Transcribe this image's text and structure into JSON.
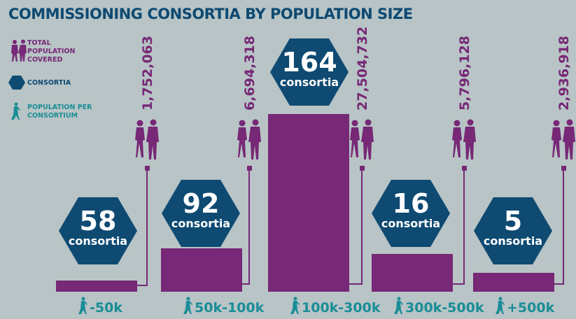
{
  "chart_data": {
    "type": "bar",
    "title": "COMMISSIONING CONSORTIA BY POPULATION SIZE",
    "legend": [
      {
        "label": "TOTAL POPULATION COVERED",
        "icon": "people-icon"
      },
      {
        "label": "CONSORTIA",
        "icon": "hexagon-icon"
      },
      {
        "label": "POPULATION PER CONSORTIUM",
        "icon": "walking-person-icon"
      }
    ],
    "categories": [
      "-50k",
      "50k-100k",
      "100k-300k",
      "300k-500k",
      "+500k"
    ],
    "consortia": [
      58,
      92,
      164,
      16,
      5
    ],
    "consortia_unit": "consortia",
    "population": [
      1752063,
      6694318,
      27504732,
      5796128,
      2936918
    ],
    "population_labels": [
      "1,752,063",
      "6,694,318",
      "27,504,732",
      "5,796,128",
      "2,936,918"
    ],
    "ylim": [
      0,
      27504732
    ]
  },
  "colors": {
    "purple": "#772876",
    "navy": "#0e4a72",
    "teal": "#1a8d96",
    "background": "#b8c4c6"
  }
}
